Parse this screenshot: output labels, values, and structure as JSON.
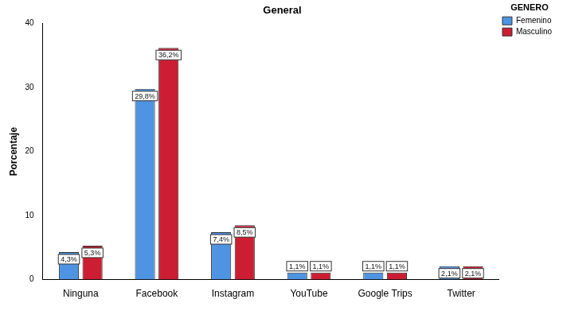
{
  "chart_data": {
    "type": "bar",
    "title": "General",
    "y_label": "Porcentaje",
    "legend_title": "GENERO",
    "categories": [
      "Ninguna",
      "Facebook",
      "Instagram",
      "YouTube",
      "Google Trips",
      "Twitter"
    ],
    "series": [
      {
        "name": "Femenino",
        "color": "#4f94e2",
        "values": [
          4.3,
          29.8,
          7.4,
          1.1,
          1.1,
          2.1
        ],
        "value_labels": [
          "4,3%",
          "29,8%",
          "7,4%",
          "1,1%",
          "1,1%",
          "2,1%"
        ]
      },
      {
        "name": "Masculino",
        "color": "#cc1e32",
        "values": [
          5.3,
          36.2,
          8.5,
          1.1,
          1.1,
          2.1
        ],
        "value_labels": [
          "5,3%",
          "36,2%",
          "8,5%",
          "1,1%",
          "1,1%",
          "2,1%"
        ]
      }
    ],
    "ylim": [
      0,
      40
    ],
    "yticks": [
      0,
      10,
      20,
      30,
      40
    ],
    "grid": false,
    "legend": "top-right",
    "data_labels": true
  }
}
